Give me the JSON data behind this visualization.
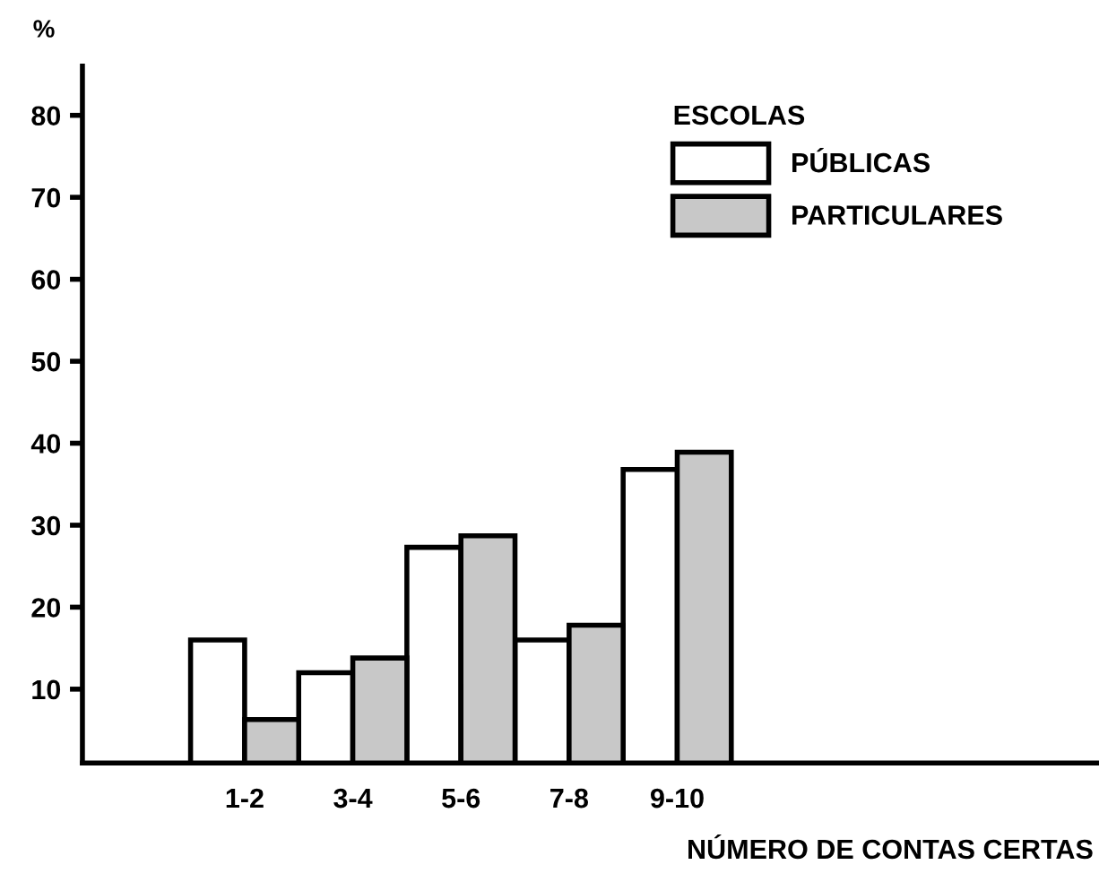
{
  "chart_data": {
    "type": "bar",
    "xlabel": "NÚMERO DE CONTAS CERTAS",
    "ylabel": "%",
    "legend_title": "ESCOLAS",
    "categories": [
      "1-2",
      "3-4",
      "5-6",
      "7-8",
      "9-10"
    ],
    "series": [
      {
        "name": "PÚBLICAS",
        "color": "#ffffff",
        "values": [
          16,
          12,
          27.3,
          16,
          36.8
        ]
      },
      {
        "name": "PARTICULARES",
        "color": "#c8c8c8",
        "values": [
          6.3,
          13.8,
          28.7,
          17.8,
          38.9
        ]
      }
    ],
    "ylim": [
      1,
      86
    ],
    "yticks": [
      10,
      20,
      30,
      40,
      50,
      60,
      70,
      80
    ],
    "grid": false,
    "legend": "top right"
  }
}
